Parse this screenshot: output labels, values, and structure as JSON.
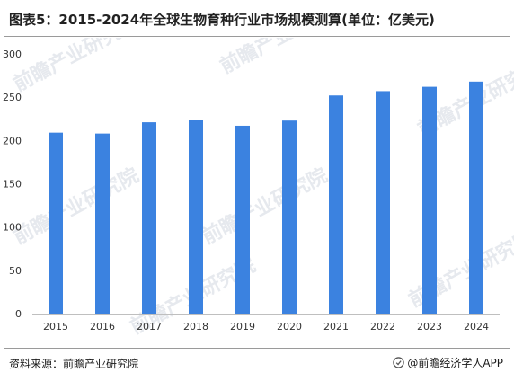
{
  "header": {
    "title": "图表5：2015-2024年全球生物育种行业市场规模测算(单位：亿美元)"
  },
  "footer": {
    "source": "资料来源：前瞻产业研究院",
    "brand": "@前瞻经济学人APP",
    "brand_icon": "qianzhan-logo-icon"
  },
  "watermark": {
    "text": "前瞻产业研究院"
  },
  "colors": {
    "bar": "#3b82e0",
    "axis": "#bfbfbf",
    "tick_text": "#333333",
    "watermark": "#e6e9ee"
  },
  "chart_data": {
    "type": "bar",
    "categories": [
      "2015",
      "2016",
      "2017",
      "2018",
      "2019",
      "2020",
      "2021",
      "2022",
      "2023",
      "2024"
    ],
    "values": [
      209,
      208,
      221,
      224,
      217,
      223,
      252,
      257,
      262,
      268
    ],
    "title": "图表5：2015-2024年全球生物育种行业市场规模测算(单位：亿美元)",
    "xlabel": "",
    "ylabel": "",
    "ylim": [
      0,
      300
    ],
    "yticks": [
      0,
      50,
      100,
      150,
      200,
      250,
      300
    ],
    "grid": false,
    "legend": "none"
  }
}
